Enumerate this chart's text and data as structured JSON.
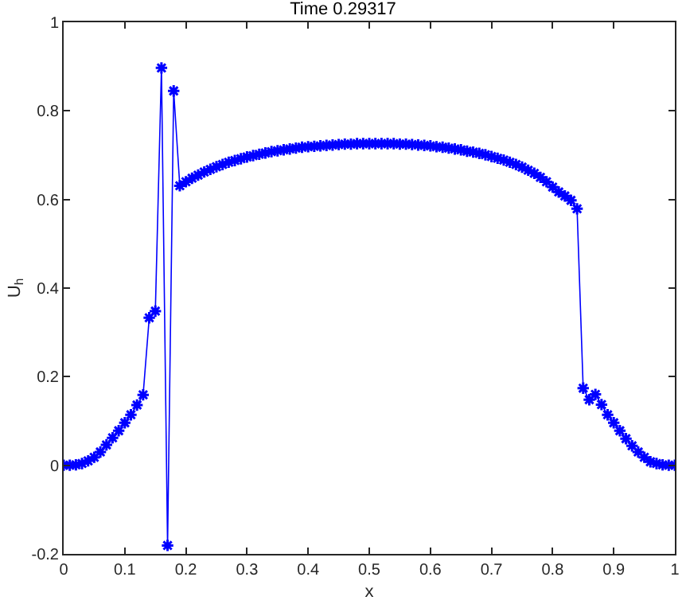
{
  "chart_data": {
    "type": "line",
    "title": "Time 0.29317",
    "xlabel": "x",
    "ylabel": "U$_{h}$",
    "x": [
      0,
      0.01,
      0.02,
      0.03,
      0.04,
      0.05,
      0.06,
      0.07,
      0.08,
      0.09,
      0.1,
      0.11,
      0.12,
      0.13,
      0.14,
      0.15,
      0.16,
      0.17,
      0.18,
      0.19,
      0.2,
      0.21,
      0.22,
      0.23,
      0.24,
      0.25,
      0.26,
      0.27,
      0.28,
      0.29,
      0.3,
      0.31,
      0.32,
      0.33,
      0.34,
      0.35,
      0.36,
      0.37,
      0.38,
      0.39,
      0.4,
      0.41,
      0.42,
      0.43,
      0.44,
      0.45,
      0.46,
      0.47,
      0.48,
      0.49,
      0.5,
      0.51,
      0.52,
      0.53,
      0.54,
      0.55,
      0.56,
      0.57,
      0.58,
      0.59,
      0.6,
      0.61,
      0.62,
      0.63,
      0.64,
      0.65,
      0.66,
      0.67,
      0.68,
      0.69,
      0.7,
      0.71,
      0.72,
      0.73,
      0.74,
      0.75,
      0.76,
      0.77,
      0.78,
      0.79,
      0.8,
      0.81,
      0.82,
      0.83,
      0.84,
      0.85,
      0.86,
      0.87,
      0.88,
      0.89,
      0.9,
      0.91,
      0.92,
      0.93,
      0.94,
      0.95,
      0.96,
      0.97,
      0.98,
      0.99,
      1
    ],
    "series": [
      {
        "color": "#0000ff",
        "values": [
          0,
          0,
          0.001,
          0.004,
          0.01,
          0.018,
          0.03,
          0.046,
          0.062,
          0.078,
          0.096,
          0.114,
          0.136,
          0.159,
          0.333,
          0.348,
          0.897,
          -0.181,
          0.845,
          0.631,
          0.64,
          0.648,
          0.655,
          0.662,
          0.668,
          0.674,
          0.679,
          0.684,
          0.688,
          0.692,
          0.696,
          0.699,
          0.702,
          0.705,
          0.708,
          0.71,
          0.712,
          0.714,
          0.716,
          0.718,
          0.719,
          0.72,
          0.721,
          0.722,
          0.723,
          0.724,
          0.725,
          0.725,
          0.726,
          0.726,
          0.726,
          0.726,
          0.726,
          0.726,
          0.726,
          0.725,
          0.725,
          0.724,
          0.723,
          0.722,
          0.721,
          0.719,
          0.718,
          0.716,
          0.714,
          0.712,
          0.709,
          0.707,
          0.704,
          0.701,
          0.697,
          0.693,
          0.689,
          0.684,
          0.679,
          0.673,
          0.666,
          0.659,
          0.65,
          0.64,
          0.628,
          0.617,
          0.608,
          0.598,
          0.579,
          0.174,
          0.148,
          0.16,
          0.137,
          0.114,
          0.096,
          0.078,
          0.06,
          0.044,
          0.03,
          0.018,
          0.008,
          0.004,
          0.001,
          0,
          0
        ]
      }
    ],
    "xlim": [
      0,
      1
    ],
    "xticks": [
      0,
      0.1,
      0.2,
      0.3,
      0.4,
      0.5,
      0.6,
      0.7,
      0.8,
      0.9,
      1
    ],
    "ylim": [
      -0.2,
      1
    ],
    "yticks": [
      -0.2,
      0,
      0.2,
      0.4,
      0.6,
      0.8,
      1
    ],
    "legend": false,
    "marker": "cross",
    "line_style": "solid"
  }
}
